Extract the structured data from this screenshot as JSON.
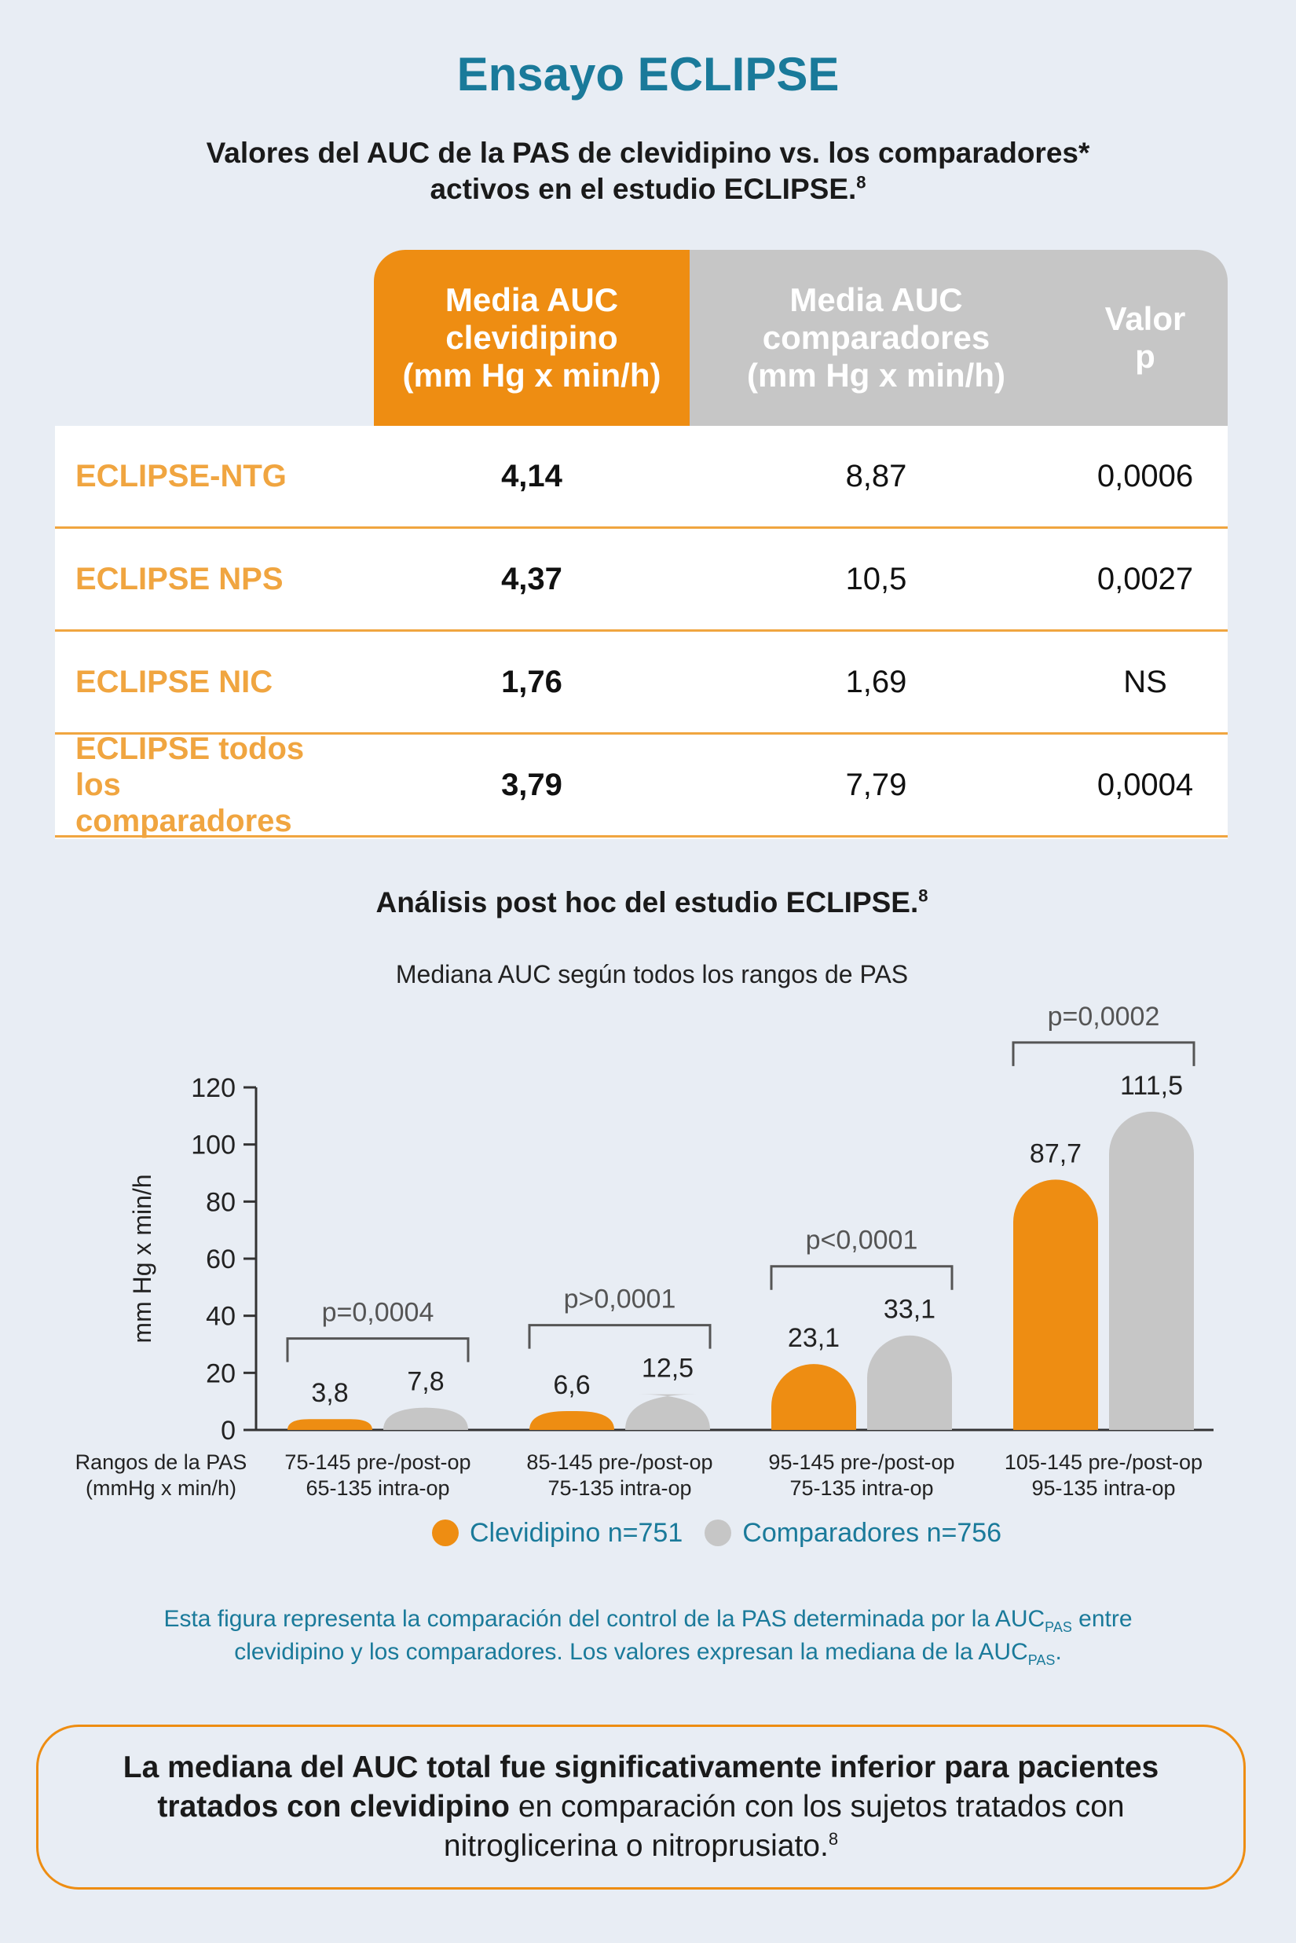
{
  "title": "Ensayo ECLIPSE",
  "subtitle_line1": "Valores del AUC de la PAS de clevidipino vs. los comparadores*",
  "subtitle_line2": "activos en el estudio ECLIPSE.",
  "subtitle_ref": "8",
  "table": {
    "headers": {
      "clev": [
        "Media AUC",
        "clevidipino",
        "(mm Hg x min/h)"
      ],
      "comp": [
        "Media AUC",
        "comparadores",
        "(mm Hg x min/h)"
      ],
      "p": [
        "Valor",
        "p"
      ]
    },
    "rows": [
      {
        "name": "ECLIPSE-NTG",
        "clev": "4,14",
        "comp": "8,87",
        "p": "0,0006"
      },
      {
        "name": "ECLIPSE NPS",
        "clev": "4,37",
        "comp": "10,5",
        "p": "0,0027"
      },
      {
        "name": "ECLIPSE NIC",
        "clev": "1,76",
        "comp": "1,69",
        "p": "NS"
      },
      {
        "name": "ECLIPSE todos los comparadores",
        "clev": "3,79",
        "comp": "7,79",
        "p": "0,0004"
      }
    ]
  },
  "post_hoc_title": "Análisis post hoc del estudio ECLIPSE.",
  "post_hoc_ref": "8",
  "colors": {
    "clevidipino": "#ee8d12",
    "comparadores": "#c6c6c6",
    "accent": "#1a7a9a"
  },
  "chart_data": {
    "type": "bar",
    "title": "Mediana AUC según todos los rangos de PAS",
    "ylabel": "mm Hg x min/h",
    "xlabel": [
      "Rangos de la PAS",
      "(mmHg x min/h)"
    ],
    "ylim": [
      0,
      120
    ],
    "yticks": [
      0,
      20,
      40,
      60,
      80,
      100,
      120
    ],
    "categories": [
      [
        "75-145 pre-/post-op",
        "65-135 intra-op"
      ],
      [
        "85-145 pre-/post-op",
        "75-135 intra-op"
      ],
      [
        "95-145 pre-/post-op",
        "75-135 intra-op"
      ],
      [
        "105-145 pre-/post-op",
        "95-135 intra-op"
      ]
    ],
    "series": [
      {
        "name": "Clevidipino n=751",
        "values": [
          3.8,
          6.6,
          23.1,
          87.7
        ],
        "labels": [
          "3,8",
          "6,6",
          "23,1",
          "87,7"
        ]
      },
      {
        "name": "Comparadores n=756",
        "values": [
          7.8,
          12.5,
          33.1,
          111.5
        ],
        "labels": [
          "7,8",
          "12,5",
          "33,1",
          "111,5"
        ]
      }
    ],
    "pvalues": [
      "p=0,0004",
      "p>0,0001",
      "p<0,0001",
      "p=0,0002"
    ],
    "legend": "bottom"
  },
  "note": {
    "line1_a": "Esta figura representa la comparación del control de la PAS determinada por la AUC",
    "line1_sub": "PAS",
    "line1_b": " entre",
    "line2_a": "clevidipino y los comparadores. Los valores expresan la mediana de la AUC",
    "line2_sub": "PAS",
    "line2_b": "."
  },
  "conclusion": {
    "bold": "La mediana del AUC total fue significativamente inferior para pacientes tratados con clevidipino",
    "rest": " en comparación con los sujetos tratados con nitroglicerina o nitroprusiato.",
    "ref": "8"
  }
}
